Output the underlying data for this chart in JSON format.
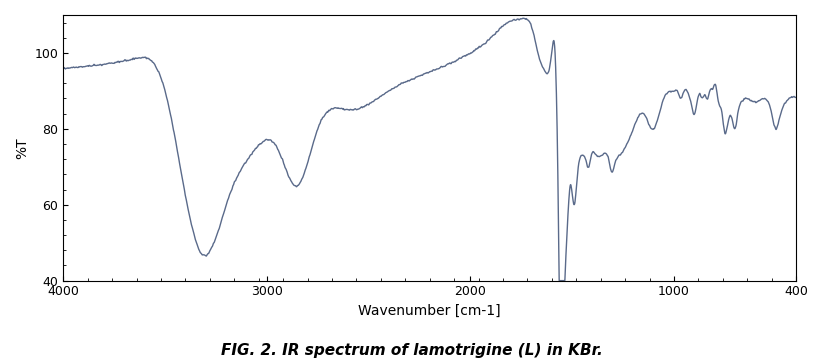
{
  "title": "FIG. 2. IR spectrum of lamotrigine (L) in KBr.",
  "xlabel": "Wavenumber [cm-1]",
  "ylabel": "%T",
  "xlim": [
    4000,
    400
  ],
  "ylim": [
    40,
    110
  ],
  "yticks": [
    40,
    60,
    80,
    100
  ],
  "xticks": [
    4000,
    3000,
    2000,
    1000,
    400
  ],
  "line_color": "#5a6a8a",
  "line_width": 1.0,
  "background_color": "#ffffff",
  "title_fontsize": 11,
  "axis_label_fontsize": 10
}
